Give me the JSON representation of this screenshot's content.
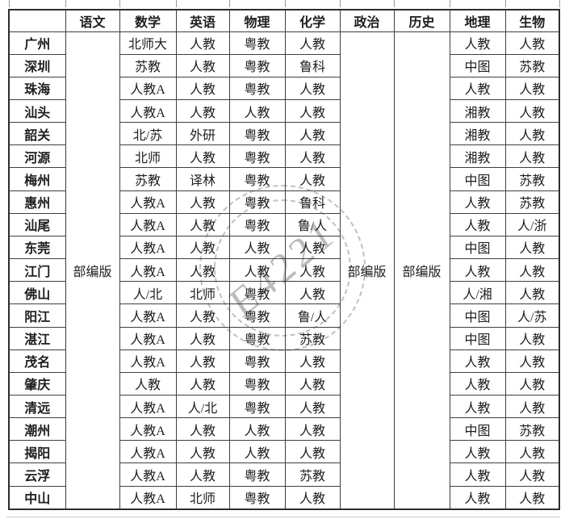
{
  "table": {
    "columns": [
      "",
      "语文",
      "数学",
      "英语",
      "物理",
      "化学",
      "政治",
      "历史",
      "地理",
      "生物"
    ],
    "merged": {
      "chinese": "部编版",
      "politics": "部编版",
      "history": "部编版"
    },
    "row_fields": [
      "city",
      "math",
      "english",
      "physics",
      "chemistry",
      "geography",
      "biology"
    ],
    "rows": [
      [
        "广州",
        "北师大",
        "人教",
        "粤教",
        "人教",
        "人教",
        "人教"
      ],
      [
        "深圳",
        "苏教",
        "人教",
        "粤教",
        "鲁科",
        "中图",
        "苏教"
      ],
      [
        "珠海",
        "人教A",
        "人教",
        "粤教",
        "人教",
        "人教",
        "人教"
      ],
      [
        "汕头",
        "人教A",
        "人教",
        "人教",
        "人教",
        "湘教",
        "人教"
      ],
      [
        "韶关",
        "北/苏",
        "外研",
        "粤教",
        "人教",
        "湘教",
        "人教"
      ],
      [
        "河源",
        "北师",
        "人教",
        "粤教",
        "人教",
        "湘教",
        "人教"
      ],
      [
        "梅州",
        "苏教",
        "译林",
        "粤教",
        "人教",
        "中图",
        "苏教"
      ],
      [
        "惠州",
        "人教A",
        "人教",
        "粤教",
        "鲁科",
        "人教",
        "苏教"
      ],
      [
        "汕尾",
        "人教A",
        "人教",
        "粤教",
        "鲁/人",
        "人教",
        "人/浙"
      ],
      [
        "东莞",
        "人教A",
        "人教",
        "人教",
        "人教",
        "中图",
        "人教"
      ],
      [
        "江门",
        "人教A",
        "人教",
        "人教",
        "人教",
        "人教",
        "人教"
      ],
      [
        "佛山",
        "人/北",
        "北师",
        "粤教",
        "人教",
        "人/湘",
        "人教"
      ],
      [
        "阳江",
        "人教A",
        "人教",
        "粤教",
        "鲁/人",
        "中图",
        "人/苏"
      ],
      [
        "湛江",
        "人教A",
        "人教",
        "粤教",
        "苏教",
        "中图",
        "人教"
      ],
      [
        "茂名",
        "人教A",
        "人教",
        "粤教",
        "人教",
        "人教",
        "人教"
      ],
      [
        "肇庆",
        "人教",
        "人教",
        "粤教",
        "人教",
        "人教",
        "人教"
      ],
      [
        "清远",
        "人教A",
        "人/北",
        "粤教",
        "人教",
        "人教",
        "人教"
      ],
      [
        "潮州",
        "人教A",
        "人教",
        "人教",
        "人教",
        "中图",
        "苏教"
      ],
      [
        "揭阳",
        "人教A",
        "人教",
        "人教",
        "人教",
        "人教",
        "人教"
      ],
      [
        "云浮",
        "人教A",
        "人教",
        "粤教",
        "苏教",
        "人教",
        "人教"
      ],
      [
        "中山",
        "人教A",
        "北师",
        "粤教",
        "人教",
        "人教",
        "人教"
      ]
    ]
  },
  "watermark": {
    "text": "E4221"
  },
  "colors": {
    "text": "#1e1e1e",
    "border": "#3f3f3f",
    "watermark": "#bcbcbc",
    "background": "#ffffff"
  }
}
